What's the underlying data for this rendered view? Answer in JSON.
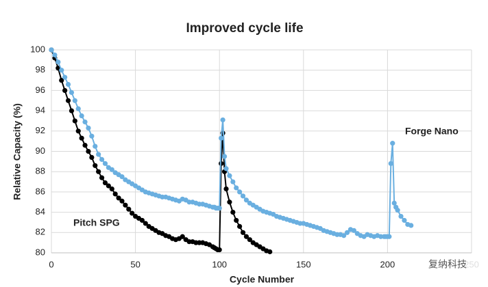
{
  "chart_data": {
    "type": "line",
    "title": "Improved cycle life",
    "x_label": "Cycle Number",
    "y_label": "Relative Capacity (%)",
    "x": [
      0,
      2,
      4,
      6,
      8,
      10,
      12,
      14,
      16,
      18,
      20,
      22,
      24,
      26,
      28,
      30,
      32,
      34,
      36,
      38,
      40,
      42,
      44,
      46,
      48,
      50,
      52,
      54,
      56,
      58,
      60,
      62,
      64,
      66,
      68,
      70,
      72,
      74,
      76,
      78,
      80,
      82,
      84,
      86,
      88,
      90,
      92,
      94,
      96,
      97,
      98,
      99,
      100,
      101,
      102,
      103,
      104,
      106,
      108,
      110,
      112,
      114,
      116,
      118,
      120,
      122,
      124,
      126,
      128,
      130,
      132,
      134,
      136,
      138,
      140,
      142,
      144,
      146,
      148,
      150,
      152,
      154,
      156,
      158,
      160,
      162,
      164,
      166,
      168,
      170,
      172,
      174,
      176,
      178,
      180,
      182,
      184,
      186,
      188,
      190,
      192,
      194,
      196,
      198,
      199,
      200,
      201,
      202,
      203,
      204,
      205,
      206,
      208,
      210,
      212,
      214
    ],
    "series": [
      {
        "name": "Pitch SPG",
        "color": "#000000",
        "values": [
          100,
          99.2,
          98.2,
          97.0,
          96.0,
          95.0,
          94.0,
          93.0,
          92.0,
          91.3,
          90.6,
          90.0,
          89.4,
          88.6,
          88.0,
          87.4,
          86.9,
          86.6,
          86.3,
          85.8,
          85.4,
          85.1,
          84.7,
          84.3,
          83.9,
          83.6,
          83.4,
          83.2,
          82.9,
          82.6,
          82.4,
          82.2,
          82.0,
          81.9,
          81.7,
          81.6,
          81.4,
          81.3,
          81.4,
          81.6,
          81.3,
          81.1,
          81.1,
          81.0,
          81.0,
          81.0,
          80.9,
          80.8,
          80.6,
          80.5,
          80.4,
          80.3,
          80.3,
          88.8,
          91.8,
          88.0,
          86.3,
          85.0,
          84.0,
          83.2,
          82.6,
          82.0,
          81.6,
          81.3,
          81.0,
          80.8,
          80.6,
          80.4,
          80.2,
          80.1,
          null,
          null,
          null,
          null,
          null,
          null,
          null,
          null,
          null,
          null,
          null,
          null,
          null,
          null,
          null,
          null,
          null,
          null,
          null,
          null,
          null,
          null,
          null,
          null,
          null,
          null,
          null,
          null,
          null,
          null,
          null,
          null,
          null,
          null,
          null,
          null,
          null,
          null,
          null,
          null,
          null,
          null,
          null,
          null,
          null,
          null
        ]
      },
      {
        "name": "Forge Nano",
        "color": "#6aafe0",
        "values": [
          100,
          99.5,
          98.8,
          98.0,
          97.3,
          96.6,
          95.8,
          95.0,
          94.2,
          93.5,
          92.9,
          92.3,
          91.5,
          90.5,
          89.7,
          89.2,
          88.8,
          88.4,
          88.2,
          87.9,
          87.7,
          87.5,
          87.2,
          87.0,
          86.8,
          86.6,
          86.4,
          86.2,
          86.0,
          85.9,
          85.8,
          85.7,
          85.6,
          85.5,
          85.5,
          85.4,
          85.3,
          85.2,
          85.1,
          85.3,
          85.2,
          85.0,
          85.0,
          84.9,
          84.8,
          84.8,
          84.7,
          84.6,
          84.5,
          84.5,
          84.4,
          84.4,
          84.4,
          91.3,
          93.1,
          89.5,
          88.3,
          87.6,
          87.0,
          86.4,
          86.0,
          85.6,
          85.2,
          84.9,
          84.7,
          84.5,
          84.3,
          84.1,
          84.0,
          83.9,
          83.8,
          83.6,
          83.5,
          83.4,
          83.3,
          83.2,
          83.1,
          83.0,
          82.9,
          82.9,
          82.8,
          82.7,
          82.6,
          82.5,
          82.4,
          82.2,
          82.1,
          82.0,
          81.9,
          81.8,
          81.8,
          81.7,
          82.0,
          82.3,
          82.2,
          81.9,
          81.7,
          81.6,
          81.8,
          81.7,
          81.6,
          81.7,
          81.6,
          81.6,
          81.6,
          81.6,
          81.6,
          88.8,
          90.8,
          84.9,
          84.5,
          84.2,
          83.6,
          83.2,
          82.8,
          82.7
        ]
      }
    ],
    "xlim": [
      0,
      250
    ],
    "xticks": [
      0,
      50,
      100,
      150,
      200,
      250
    ],
    "ylim": [
      80,
      100
    ],
    "yticks": [
      80,
      82,
      84,
      86,
      88,
      90,
      92,
      94,
      96,
      98,
      100
    ],
    "grid": true,
    "watermark": "复纳科技"
  }
}
